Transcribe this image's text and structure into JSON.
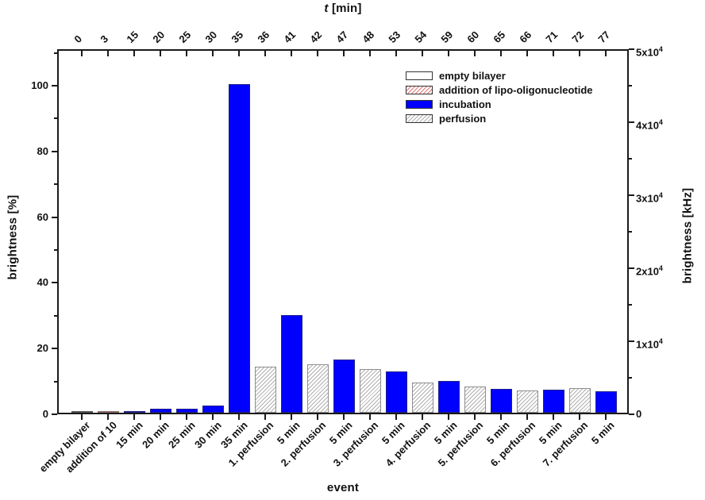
{
  "chart_data": {
    "type": "bar",
    "top_axis": {
      "title_italic": "t",
      "title_rest": " [min]",
      "tick_labels": [
        "0",
        "3",
        "15",
        "20",
        "25",
        "30",
        "35",
        "36",
        "41",
        "42",
        "47",
        "48",
        "53",
        "54",
        "59",
        "60",
        "65",
        "66",
        "71",
        "72",
        "77"
      ]
    },
    "xlabel": "event",
    "ylabel_left": "brightness [%]",
    "ylabel_right": "brightness [kHz]",
    "left_axis": {
      "min": 0,
      "max_visible": 111,
      "major_ticks": [
        0,
        20,
        40,
        60,
        80,
        100
      ]
    },
    "right_axis": {
      "min": 0,
      "max": 50000,
      "tick_labels": [
        "0",
        "1x10^4",
        "2x10^4",
        "3x10^4",
        "4x10^4",
        "5x10^4"
      ]
    },
    "grid": false,
    "legend_position": "top-right-inside",
    "categories": [
      "empty bilayer",
      "addition of 10",
      "15 min",
      "20 min",
      "25 min",
      "30 min",
      "35 min",
      "1. perfusion",
      "5 min",
      "2. perfusion",
      "5 min",
      "3. perfusion",
      "5 min",
      "4. perfusion",
      "5 min",
      "5. perfusion",
      "5 min",
      "6. perfusion",
      "5 min",
      "7. perfusion",
      "5 min"
    ],
    "bars": [
      {
        "label": "empty bilayer",
        "t": "0",
        "type": "empty",
        "percent": 0.6
      },
      {
        "label": "addition of 10",
        "t": "3",
        "type": "addition",
        "percent": 0.6
      },
      {
        "label": "15 min",
        "t": "15",
        "type": "incubation",
        "percent": 0.5
      },
      {
        "label": "20 min",
        "t": "20",
        "type": "incubation",
        "percent": 1.3
      },
      {
        "label": "25 min",
        "t": "25",
        "type": "incubation",
        "percent": 1.1
      },
      {
        "label": "30 min",
        "t": "30",
        "type": "incubation",
        "percent": 2.2
      },
      {
        "label": "35 min",
        "t": "35",
        "type": "incubation",
        "percent": 100
      },
      {
        "label": "1. perfusion",
        "t": "36",
        "type": "perfusion",
        "percent": 14.1
      },
      {
        "label": "5 min",
        "t": "41",
        "type": "incubation",
        "percent": 29.6
      },
      {
        "label": "2. perfusion",
        "t": "42",
        "type": "perfusion",
        "percent": 14.7
      },
      {
        "label": "5 min",
        "t": "47",
        "type": "incubation",
        "percent": 16.1
      },
      {
        "label": "3. perfusion",
        "t": "48",
        "type": "perfusion",
        "percent": 13.4
      },
      {
        "label": "5 min",
        "t": "53",
        "type": "incubation",
        "percent": 12.5
      },
      {
        "label": "4. perfusion",
        "t": "54",
        "type": "perfusion",
        "percent": 9.3
      },
      {
        "label": "5 min",
        "t": "59",
        "type": "incubation",
        "percent": 9.6
      },
      {
        "label": "5. perfusion",
        "t": "60",
        "type": "perfusion",
        "percent": 7.9
      },
      {
        "label": "5 min",
        "t": "65",
        "type": "incubation",
        "percent": 7.2
      },
      {
        "label": "6. perfusion",
        "t": "66",
        "type": "perfusion",
        "percent": 6.7
      },
      {
        "label": "5 min",
        "t": "71",
        "type": "incubation",
        "percent": 6.9
      },
      {
        "label": "7. perfusion",
        "t": "72",
        "type": "perfusion",
        "percent": 7.4
      },
      {
        "label": "5 min",
        "t": "77",
        "type": "incubation",
        "percent": 6.6
      }
    ],
    "legend": [
      {
        "type": "empty",
        "label": "empty bilayer"
      },
      {
        "type": "addition",
        "label": "addition of lipo-oligonucleotide"
      },
      {
        "type": "incubation",
        "label": "incubation"
      },
      {
        "type": "perfusion",
        "label": "perfusion"
      }
    ],
    "colors": {
      "incubation": "#0000ff",
      "empty_fill": "#ffffff",
      "addition_hatch": "#dd7777",
      "perfusion_hatch": "#b0b0b0",
      "axis": "#1a1a1a"
    }
  }
}
